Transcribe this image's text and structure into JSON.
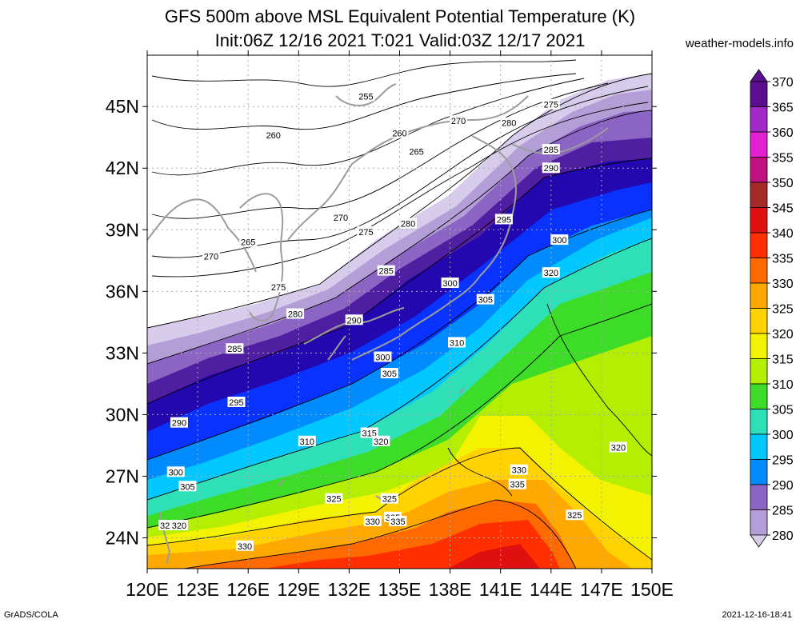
{
  "header": {
    "title_line1": "GFS 500m above MSL Equivalent Potential Temperature (K)",
    "title_line2": "Init:06Z 12/16 2021 T:021 Valid:03Z 12/17 2021",
    "brand": "weather-models.info"
  },
  "footer": {
    "left": "GrADS/COLA",
    "right": "2021-12-16-18:41"
  },
  "map": {
    "lon_labels": [
      "120E",
      "123E",
      "126E",
      "129E",
      "132E",
      "135E",
      "138E",
      "141E",
      "144E",
      "147E",
      "150E"
    ],
    "lat_labels": [
      "24N",
      "27N",
      "30N",
      "33N",
      "36N",
      "39N",
      "42N",
      "45N"
    ],
    "lon_range": [
      120,
      150
    ],
    "lat_range": [
      22.5,
      47.5
    ],
    "contour_labels": [
      {
        "v": "255",
        "lon": 133.0,
        "lat": 45.5
      },
      {
        "v": "260",
        "lon": 127.5,
        "lat": 43.6
      },
      {
        "v": "260",
        "lon": 135.0,
        "lat": 43.7
      },
      {
        "v": "265",
        "lon": 136.0,
        "lat": 42.8
      },
      {
        "v": "270",
        "lon": 138.5,
        "lat": 44.3
      },
      {
        "v": "275",
        "lon": 144.0,
        "lat": 45.1
      },
      {
        "v": "280",
        "lon": 141.5,
        "lat": 44.2
      },
      {
        "v": "285",
        "lon": 144.0,
        "lat": 42.9
      },
      {
        "v": "290",
        "lon": 144.0,
        "lat": 42.0
      },
      {
        "v": "270",
        "lon": 131.5,
        "lat": 39.6
      },
      {
        "v": "275",
        "lon": 133.0,
        "lat": 38.9
      },
      {
        "v": "280",
        "lon": 135.5,
        "lat": 39.3
      },
      {
        "v": "295",
        "lon": 141.2,
        "lat": 39.5
      },
      {
        "v": "300",
        "lon": 144.5,
        "lat": 38.5
      },
      {
        "v": "265",
        "lon": 126.0,
        "lat": 38.4
      },
      {
        "v": "270",
        "lon": 123.8,
        "lat": 37.7
      },
      {
        "v": "285",
        "lon": 134.2,
        "lat": 37.0
      },
      {
        "v": "275",
        "lon": 127.8,
        "lat": 36.2
      },
      {
        "v": "300",
        "lon": 138.0,
        "lat": 36.4
      },
      {
        "v": "320",
        "lon": 144.0,
        "lat": 36.9
      },
      {
        "v": "280",
        "lon": 128.8,
        "lat": 34.9
      },
      {
        "v": "305",
        "lon": 140.1,
        "lat": 35.6
      },
      {
        "v": "290",
        "lon": 132.3,
        "lat": 34.6
      },
      {
        "v": "285",
        "lon": 125.2,
        "lat": 33.2
      },
      {
        "v": "310",
        "lon": 138.4,
        "lat": 33.5
      },
      {
        "v": "300",
        "lon": 134.0,
        "lat": 32.8
      },
      {
        "v": "305",
        "lon": 134.4,
        "lat": 32.0
      },
      {
        "v": "295",
        "lon": 125.3,
        "lat": 30.6
      },
      {
        "v": "290",
        "lon": 121.9,
        "lat": 29.6
      },
      {
        "v": "315",
        "lon": 133.2,
        "lat": 29.1
      },
      {
        "v": "320",
        "lon": 133.9,
        "lat": 28.7
      },
      {
        "v": "310",
        "lon": 129.5,
        "lat": 28.7
      },
      {
        "v": "320",
        "lon": 148.0,
        "lat": 28.4
      },
      {
        "v": "300",
        "lon": 121.7,
        "lat": 27.2
      },
      {
        "v": "305",
        "lon": 122.4,
        "lat": 26.5
      },
      {
        "v": "330",
        "lon": 142.1,
        "lat": 27.3
      },
      {
        "v": "335",
        "lon": 142.0,
        "lat": 26.6
      },
      {
        "v": "325",
        "lon": 131.1,
        "lat": 25.9
      },
      {
        "v": "325",
        "lon": 134.4,
        "lat": 25.9
      },
      {
        "v": "325",
        "lon": 145.4,
        "lat": 25.1
      },
      {
        "v": "325",
        "lon": 121.2,
        "lat": 24.6
      },
      {
        "v": "320",
        "lon": 121.9,
        "lat": 24.6
      },
      {
        "v": "325",
        "lon": 134.6,
        "lat": 25.0
      },
      {
        "v": "330",
        "lon": 133.4,
        "lat": 24.8
      },
      {
        "v": "335",
        "lon": 134.9,
        "lat": 24.8
      },
      {
        "v": "330",
        "lon": 125.8,
        "lat": 23.6
      }
    ]
  },
  "colorbar": {
    "levels": [
      {
        "label": "370",
        "color": "#5a0f8e"
      },
      {
        "label": "365",
        "color": "#a228c8"
      },
      {
        "label": "360",
        "color": "#e31fd2"
      },
      {
        "label": "355",
        "color": "#c0127f"
      },
      {
        "label": "350",
        "color": "#a52a2a"
      },
      {
        "label": "345",
        "color": "#e01010"
      },
      {
        "label": "340",
        "color": "#ff2f00"
      },
      {
        "label": "335",
        "color": "#ff6a00"
      },
      {
        "label": "330",
        "color": "#ffa800"
      },
      {
        "label": "325",
        "color": "#ffd200"
      },
      {
        "label": "320",
        "color": "#f3f200"
      },
      {
        "label": "315",
        "color": "#b4ee00"
      },
      {
        "label": "310",
        "color": "#3cdc28"
      },
      {
        "label": "305",
        "color": "#2ee0b8"
      },
      {
        "label": "300",
        "color": "#00c8ff"
      },
      {
        "label": "295",
        "color": "#008cff"
      },
      {
        "label": "290",
        "color": "#0a32ff"
      },
      {
        "label": "285",
        "color": "#2308b0"
      },
      {
        "label": "280",
        "color": "#501ea0"
      }
    ],
    "light_bins": [
      "#8c64c4",
      "#b49ed8",
      "#d8ccec"
    ]
  }
}
